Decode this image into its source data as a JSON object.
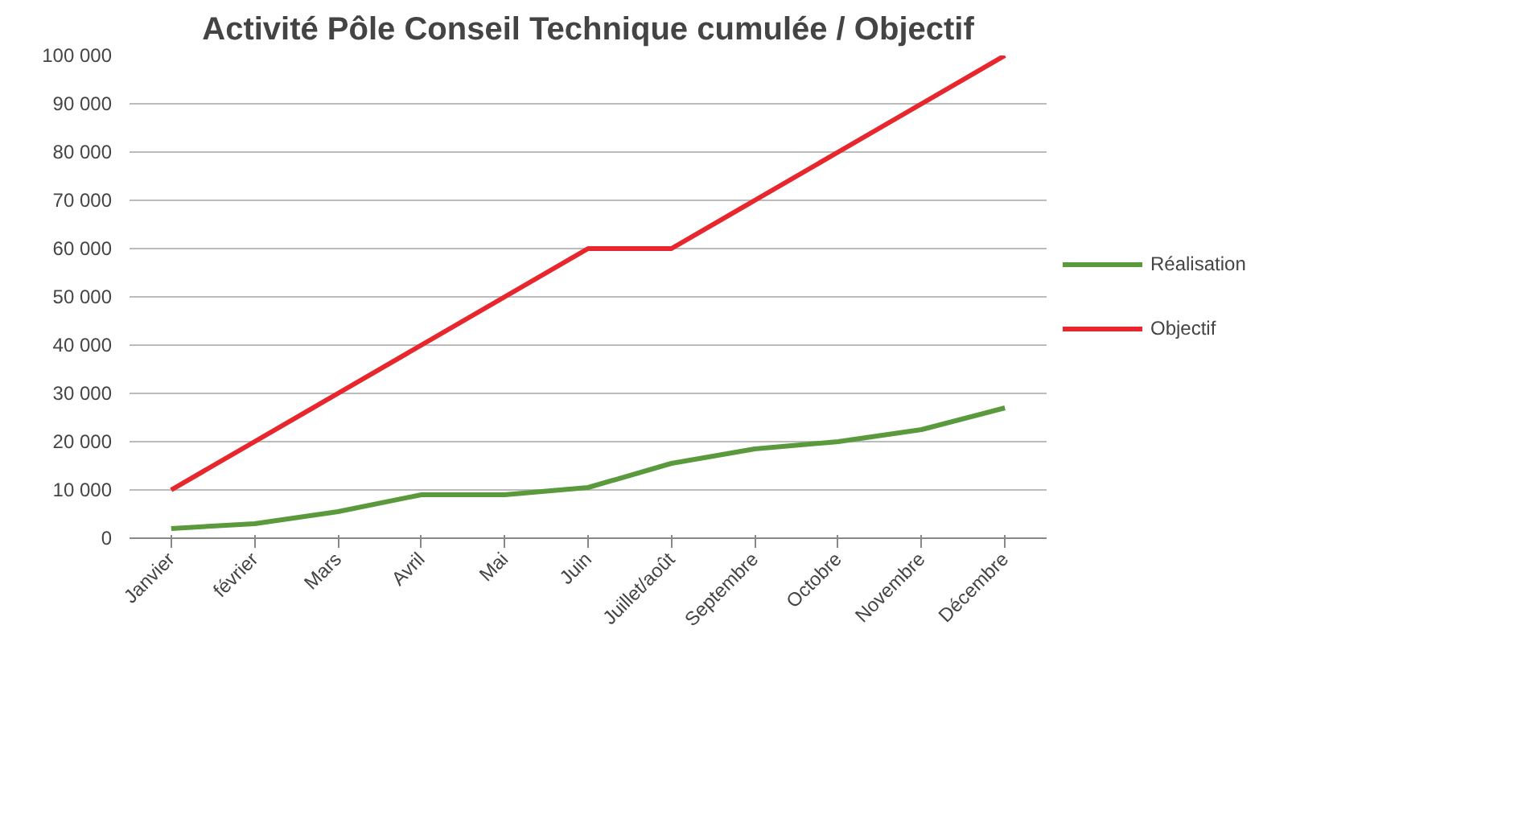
{
  "chart_data": {
    "type": "line",
    "title": "Activité Pôle Conseil Technique cumulée / Objectif",
    "categories": [
      "Janvier",
      "février",
      "Mars",
      "Avril",
      "Mai",
      "Juin",
      "Juillet/août",
      "Septembre",
      "Octobre",
      "Novembre",
      "Décembre"
    ],
    "series": [
      {
        "name": "Réalisation",
        "color": "#5a9a3c",
        "values": [
          2000,
          3000,
          5500,
          9000,
          9000,
          10500,
          15500,
          18500,
          20000,
          22500,
          27000
        ]
      },
      {
        "name": "Objectif",
        "color": "#e8262d",
        "values": [
          10000,
          20000,
          30000,
          40000,
          50000,
          60000,
          60000,
          70000,
          80000,
          90000,
          100000
        ]
      }
    ],
    "ylim": [
      0,
      100000
    ],
    "yticks": [
      0,
      {
        "value": 10000,
        "label": "10 000"
      },
      {
        "value": 20000,
        "label": "20 000"
      },
      {
        "value": 30000,
        "label": "30 000"
      },
      {
        "value": 40000,
        "label": "40 000"
      },
      {
        "value": 50000,
        "label": "50 000"
      },
      {
        "value": 60000,
        "label": "60 000"
      },
      {
        "value": 70000,
        "label": "70 000"
      },
      {
        "value": 80000,
        "label": "80 000"
      },
      {
        "value": 90000,
        "label": "90 000"
      },
      {
        "value": 100000,
        "label": "100 000"
      }
    ],
    "grid": "y",
    "legend": "right",
    "marker": "none",
    "line_style": "solid"
  }
}
